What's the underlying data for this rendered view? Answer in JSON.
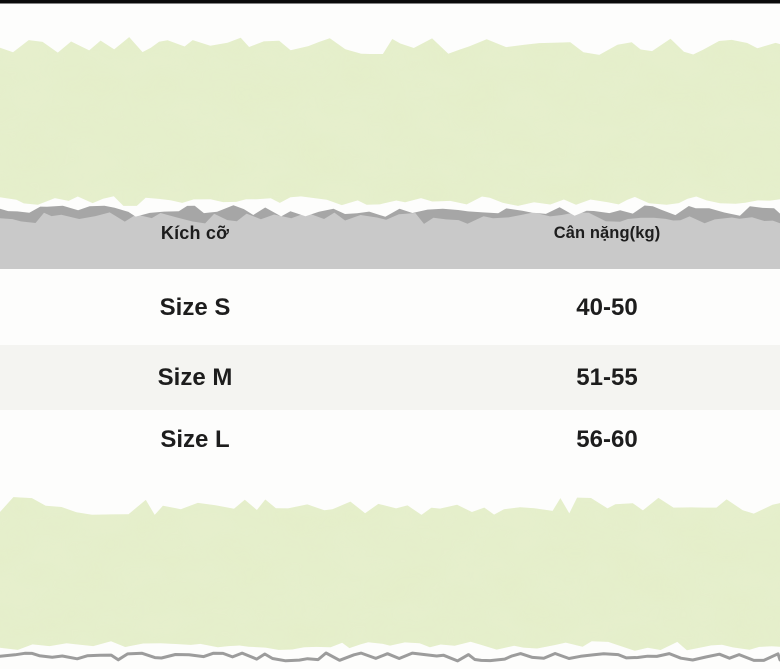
{
  "chart_data": {
    "type": "table",
    "title": "",
    "columns": [
      "Kích cỡ",
      "Cân nặng(kg)"
    ],
    "rows": [
      [
        "Size S",
        "40-50"
      ],
      [
        "Size M",
        "51-55"
      ],
      [
        "Size L",
        "56-60"
      ]
    ],
    "layout": {
      "header_background": "gray band with torn-paper edge",
      "alternating_row_shading": "middle row light gray"
    }
  },
  "table": {
    "header": {
      "size_label": "Kích cỡ",
      "weight_label": "Cân nặng(kg)"
    },
    "rows": [
      {
        "size": "Size S",
        "weight": "40-50"
      },
      {
        "size": "Size M",
        "weight": "51-55"
      },
      {
        "size": "Size L",
        "weight": "56-60"
      }
    ]
  },
  "colors": {
    "paper_green": "#e6efcd",
    "paper_green_mottle": "#c2d88c",
    "header_gray": "#c9c9c9",
    "torn_shadow_gray": "#a6a6a6",
    "bottom_tear_line_gray": "#9c9c9c",
    "row_alt_gray": "#f4f4f1",
    "top_border_black": "#0b0b0b",
    "text_dark": "#2a2a2a"
  }
}
